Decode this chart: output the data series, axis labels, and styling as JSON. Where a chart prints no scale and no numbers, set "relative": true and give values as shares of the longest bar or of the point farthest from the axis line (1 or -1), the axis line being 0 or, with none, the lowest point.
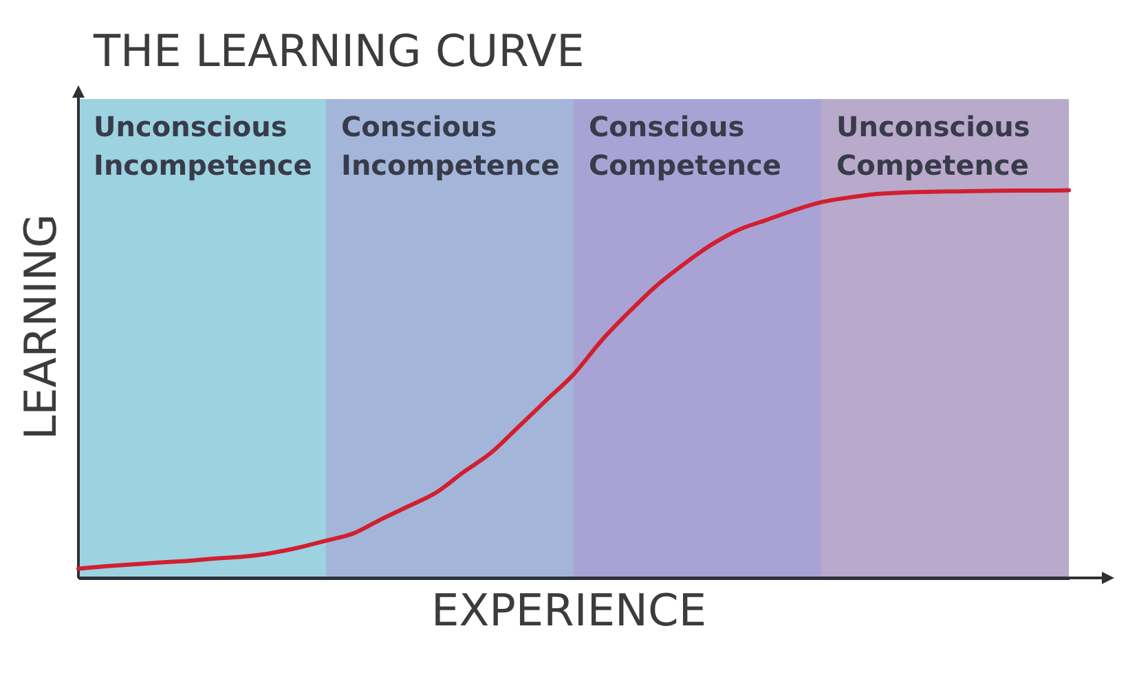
{
  "chart_data": {
    "type": "line",
    "title": "THE LEARNING CURVE",
    "xlabel": "EXPERIENCE",
    "ylabel": "LEARNING",
    "relative": true,
    "tick_labels": false,
    "line_style": "solid",
    "categories": [
      null,
      null,
      null,
      null,
      null,
      null,
      null,
      null,
      null,
      null,
      null,
      null,
      null,
      null,
      null,
      null,
      null,
      null,
      null,
      null,
      null,
      null,
      null,
      null,
      null,
      null,
      null,
      null,
      null,
      null,
      null,
      null,
      null,
      null,
      null,
      null,
      null
    ],
    "series": [
      {
        "color": "#d21f2f",
        "values": [
          0.024,
          0.03,
          0.035,
          0.04,
          0.044,
          0.05,
          0.055,
          0.064,
          0.078,
          0.096,
          0.115,
          0.151,
          0.185,
          0.22,
          0.273,
          0.323,
          0.39,
          0.458,
          0.525,
          0.611,
          0.685,
          0.753,
          0.809,
          0.859,
          0.898,
          0.923,
          0.948,
          0.969,
          0.981,
          0.99,
          0.994,
          0.996,
          0.997,
          0.998,
          0.999,
          0.999,
          1.0
        ]
      }
    ],
    "annotations": [
      "Unconscious Incompetence",
      "Conscious Incompetence",
      "Conscious Competence",
      "Unconscious Competence"
    ]
  }
}
